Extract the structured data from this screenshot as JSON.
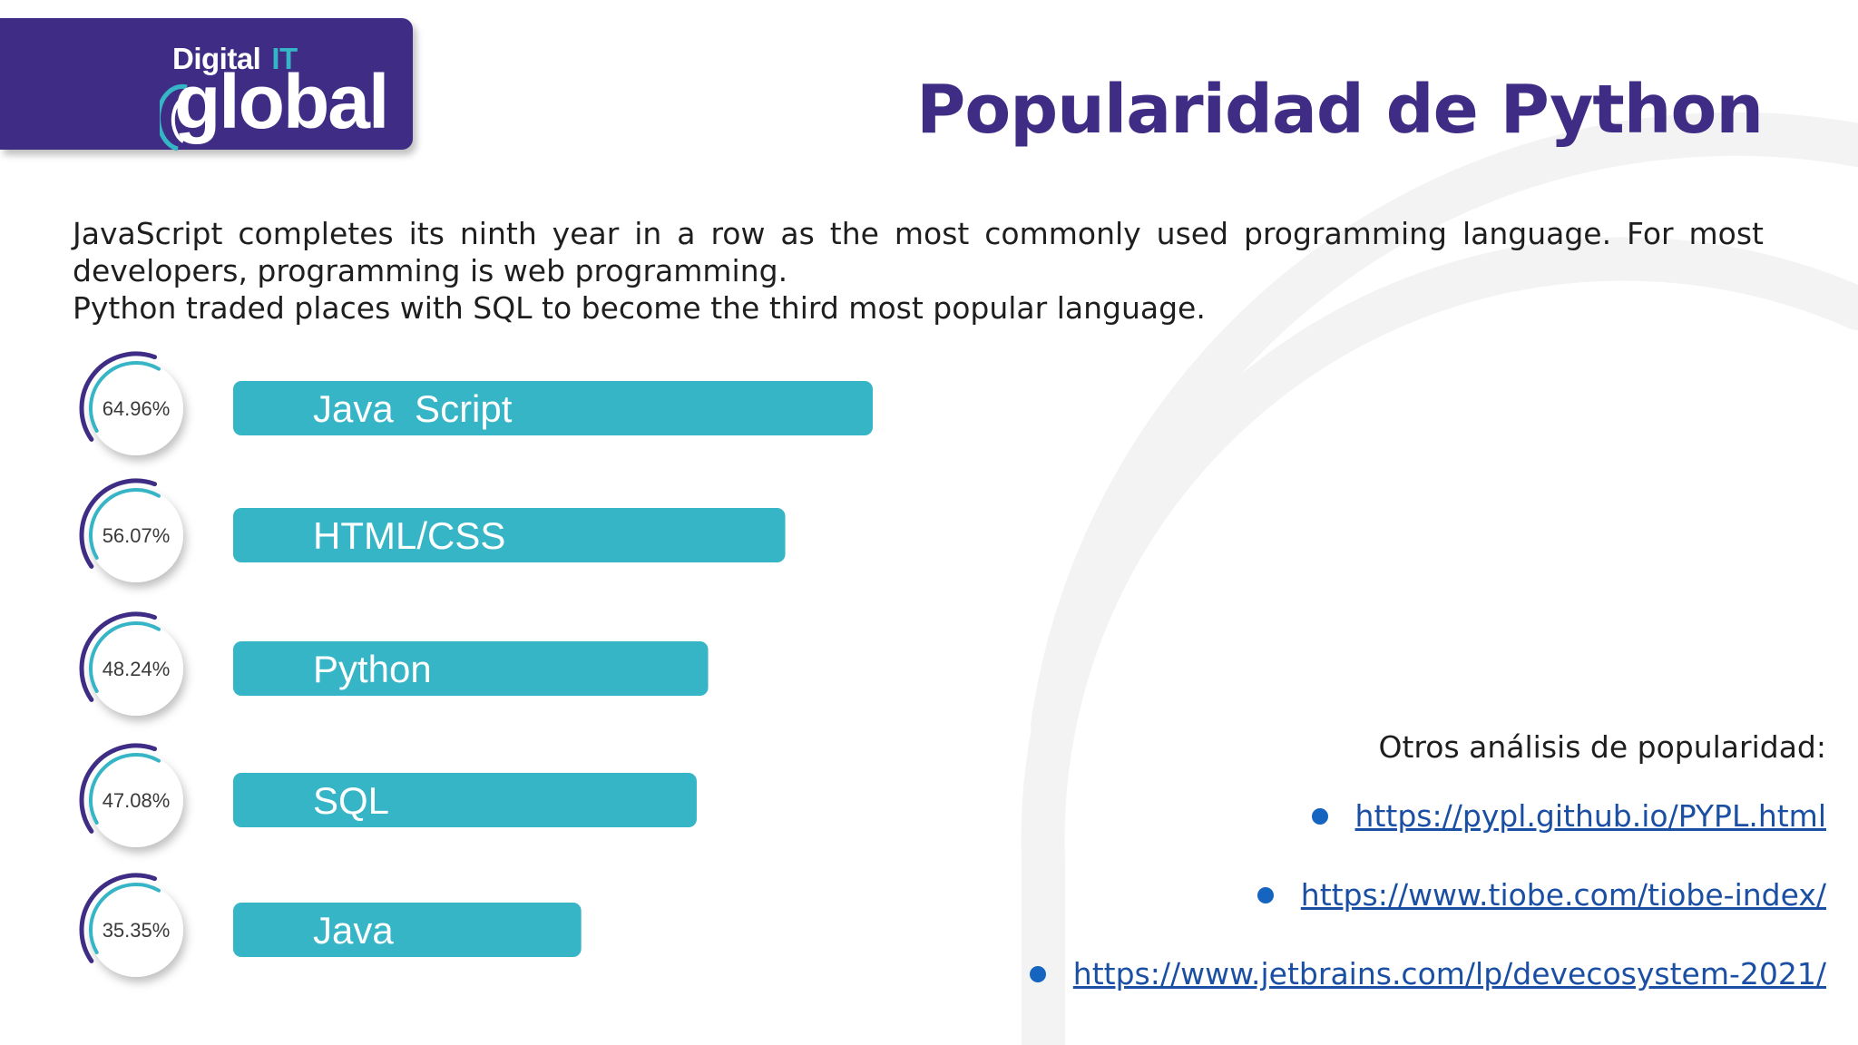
{
  "logo": {
    "top": "Digital",
    "top_accent": "IT",
    "main": "global"
  },
  "title": "Popularidad de Python",
  "intro": {
    "p1": "JavaScript completes its ninth year in a row as the most commonly used programming language. For most developers, programming is web programming.",
    "p2": "Python traded places with SQL to become the third most popular language."
  },
  "colors": {
    "brand_purple": "#3f2d85",
    "bar_teal": "#35b5c5",
    "link_blue": "#1a4fa3",
    "bullet_blue": "#1565c0"
  },
  "chart_data": {
    "type": "bar",
    "orientation": "horizontal",
    "categories": [
      "Java  Script",
      "HTML/CSS",
      "Python",
      "SQL",
      "Java"
    ],
    "values": [
      64.96,
      56.07,
      48.24,
      47.08,
      35.35
    ],
    "value_labels": [
      "64.96%",
      "56.07%",
      "48.24%",
      "47.08%",
      "35.35%"
    ],
    "unit": "%"
  },
  "analysis": {
    "heading": "Otros análisis de popularidad:",
    "links": [
      "https://pypl.github.io/PYPL.html",
      "https://www.tiobe.com/tiobe-index/",
      "https://www.jetbrains.com/lp/devecosystem-2021/"
    ]
  }
}
